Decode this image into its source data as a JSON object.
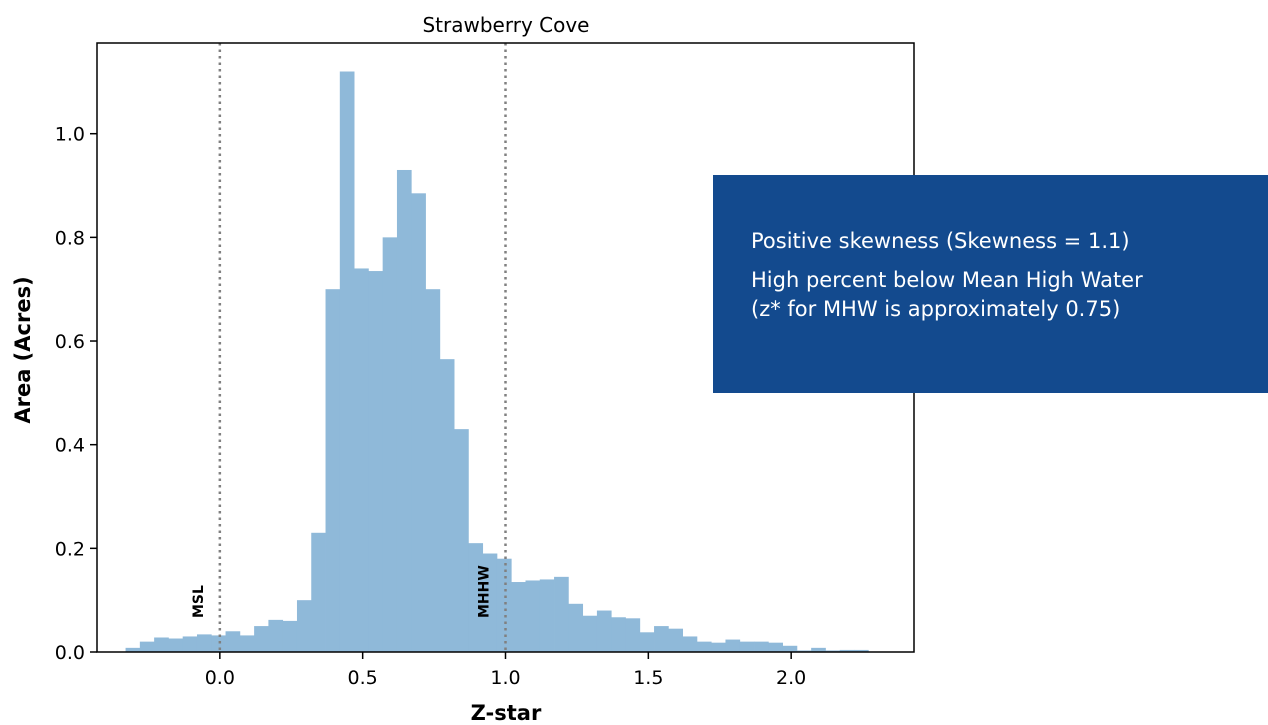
{
  "chart_data": {
    "type": "bar",
    "title": "Strawberry Cove",
    "xlabel": "Z-star",
    "ylabel": "Area (Acres)",
    "xlim": [
      -0.43,
      2.43
    ],
    "ylim": [
      0,
      1.175
    ],
    "xticks": [
      {
        "value": 0.0,
        "label": "0.0"
      },
      {
        "value": 0.5,
        "label": "0.5"
      },
      {
        "value": 1.0,
        "label": "1.0"
      },
      {
        "value": 1.5,
        "label": "1.5"
      },
      {
        "value": 2.0,
        "label": "2.0"
      }
    ],
    "yticks": [
      {
        "value": 0.0,
        "label": "0.0"
      },
      {
        "value": 0.2,
        "label": "0.2"
      },
      {
        "value": 0.4,
        "label": "0.4"
      },
      {
        "value": 0.6,
        "label": "0.6"
      },
      {
        "value": 0.8,
        "label": "0.8"
      },
      {
        "value": 1.0,
        "label": "1.0"
      }
    ],
    "bin_start": -0.33,
    "bin_width": 0.05,
    "values": [
      0.008,
      0.02,
      0.028,
      0.026,
      0.03,
      0.034,
      0.032,
      0.04,
      0.032,
      0.05,
      0.062,
      0.06,
      0.1,
      0.23,
      0.7,
      1.12,
      0.74,
      0.735,
      0.8,
      0.93,
      0.885,
      0.7,
      0.565,
      0.43,
      0.21,
      0.19,
      0.18,
      0.135,
      0.138,
      0.14,
      0.145,
      0.093,
      0.07,
      0.08,
      0.067,
      0.065,
      0.038,
      0.05,
      0.045,
      0.03,
      0.02,
      0.018,
      0.024,
      0.02,
      0.02,
      0.018,
      0.012,
      0.003,
      0.008,
      0.003,
      0.004,
      0.004
    ],
    "bar_color": "#8fb9d9",
    "reference_lines": [
      {
        "x": 0.0,
        "label": "MSL"
      },
      {
        "x": 1.0,
        "label": "MHHW"
      }
    ]
  },
  "callout": {
    "line1": "Positive skewness (Skewness = 1.1)",
    "line2a": "High percent below Mean High Water",
    "line2b": "(z* for MHW is approximately 0.75)",
    "background": "#134a8e"
  }
}
